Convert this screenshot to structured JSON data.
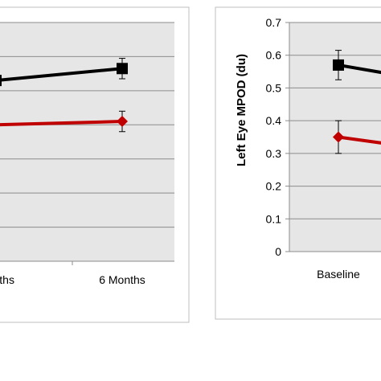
{
  "chart_data": [
    {
      "type": "line",
      "title": "",
      "xlabel": "",
      "ylabel": "",
      "categories": [
        "Months",
        "6 Months"
      ],
      "ylim": [
        0,
        0.7
      ],
      "grid": true,
      "series": [
        {
          "color": "#000000",
          "marker": "square",
          "values": [
            0.53,
            0.565
          ],
          "error": [
            0.04,
            0.03
          ]
        },
        {
          "color": "#c00000",
          "marker": "diamond",
          "values": [
            0.4,
            0.41
          ],
          "error": [
            0.04,
            0.03
          ]
        }
      ]
    },
    {
      "type": "line",
      "title": "",
      "xlabel": "",
      "ylabel": "Left Eye MPOD (du)",
      "categories": [
        "Baseline"
      ],
      "yticks": [
        "0",
        "0.1",
        "0.2",
        "0.3",
        "0.4",
        "0.5",
        "0.6",
        "0.7"
      ],
      "ylim": [
        0,
        0.7
      ],
      "grid": true,
      "series": [
        {
          "color": "#000000",
          "marker": "square",
          "values": [
            0.57
          ],
          "error": [
            0.045
          ]
        },
        {
          "color": "#c00000",
          "marker": "diamond",
          "values": [
            0.35
          ],
          "error": [
            0.05
          ]
        }
      ]
    }
  ]
}
